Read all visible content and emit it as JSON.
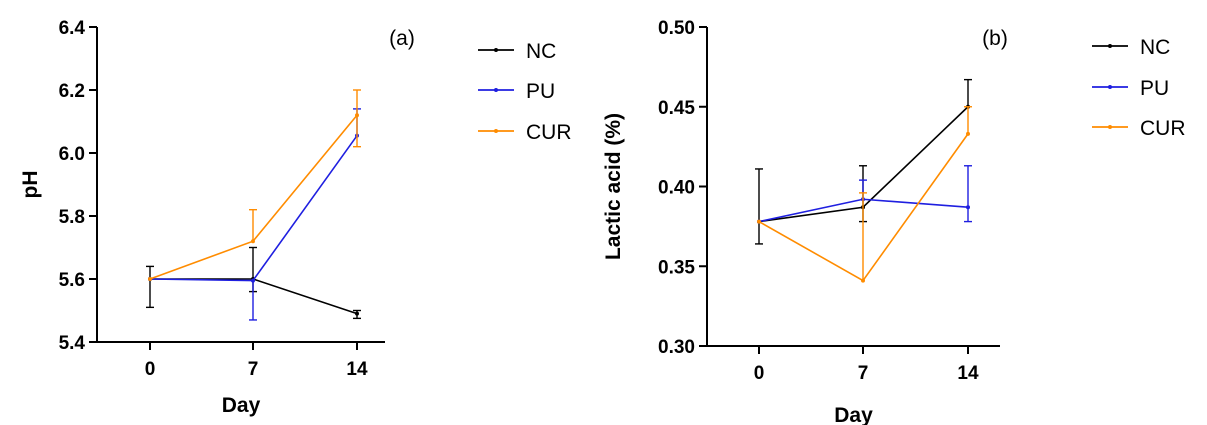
{
  "chart_data": [
    {
      "type": "line",
      "panel_label": "(a)",
      "xlabel": "Day",
      "ylabel": "pH",
      "x": [
        0,
        7,
        14
      ],
      "x_ticks": [
        "0",
        "7",
        "14"
      ],
      "ylim": [
        5.4,
        6.4
      ],
      "y_ticks": [
        "5.4",
        "5.6",
        "5.8",
        "6.0",
        "6.2",
        "6.4"
      ],
      "legend_position": "right",
      "series": [
        {
          "name": "NC",
          "color": "#000000",
          "values": [
            5.6,
            5.6,
            5.49
          ],
          "error_low": [
            0.09,
            0.04,
            0.015
          ],
          "error_high": [
            0.04,
            0.1,
            0.01
          ]
        },
        {
          "name": "PU",
          "color": "#1f1fe0",
          "values": [
            5.6,
            5.595,
            6.055
          ],
          "error_low": [
            0.0,
            0.125,
            0.0
          ],
          "error_high": [
            0.0,
            0.0,
            0.085
          ]
        },
        {
          "name": "CUR",
          "color": "#ff8c00",
          "values": [
            5.6,
            5.72,
            6.12
          ],
          "error_low": [
            0.0,
            0.0,
            0.1
          ],
          "error_high": [
            0.0,
            0.1,
            0.08
          ]
        }
      ]
    },
    {
      "type": "line",
      "panel_label": "(b)",
      "xlabel": "Day",
      "ylabel": "Lactic acid (%)",
      "x": [
        0,
        7,
        14
      ],
      "x_ticks": [
        "0",
        "7",
        "14"
      ],
      "ylim": [
        0.3,
        0.5
      ],
      "y_ticks": [
        "0.30",
        "0.35",
        "0.40",
        "0.45",
        "0.50"
      ],
      "legend_position": "right",
      "series": [
        {
          "name": "NC",
          "color": "#000000",
          "values": [
            0.378,
            0.387,
            0.45
          ],
          "error_low": [
            0.014,
            0.009,
            0.0
          ],
          "error_high": [
            0.033,
            0.026,
            0.017
          ]
        },
        {
          "name": "PU",
          "color": "#1f1fe0",
          "values": [
            0.378,
            0.392,
            0.387
          ],
          "error_low": [
            0.0,
            0.0,
            0.009
          ],
          "error_high": [
            0.0,
            0.012,
            0.026
          ]
        },
        {
          "name": "CUR",
          "color": "#ff8c00",
          "values": [
            0.378,
            0.341,
            0.433
          ],
          "error_low": [
            0.0,
            0.0,
            0.0
          ],
          "error_high": [
            0.0,
            0.055,
            0.017
          ]
        }
      ]
    }
  ]
}
